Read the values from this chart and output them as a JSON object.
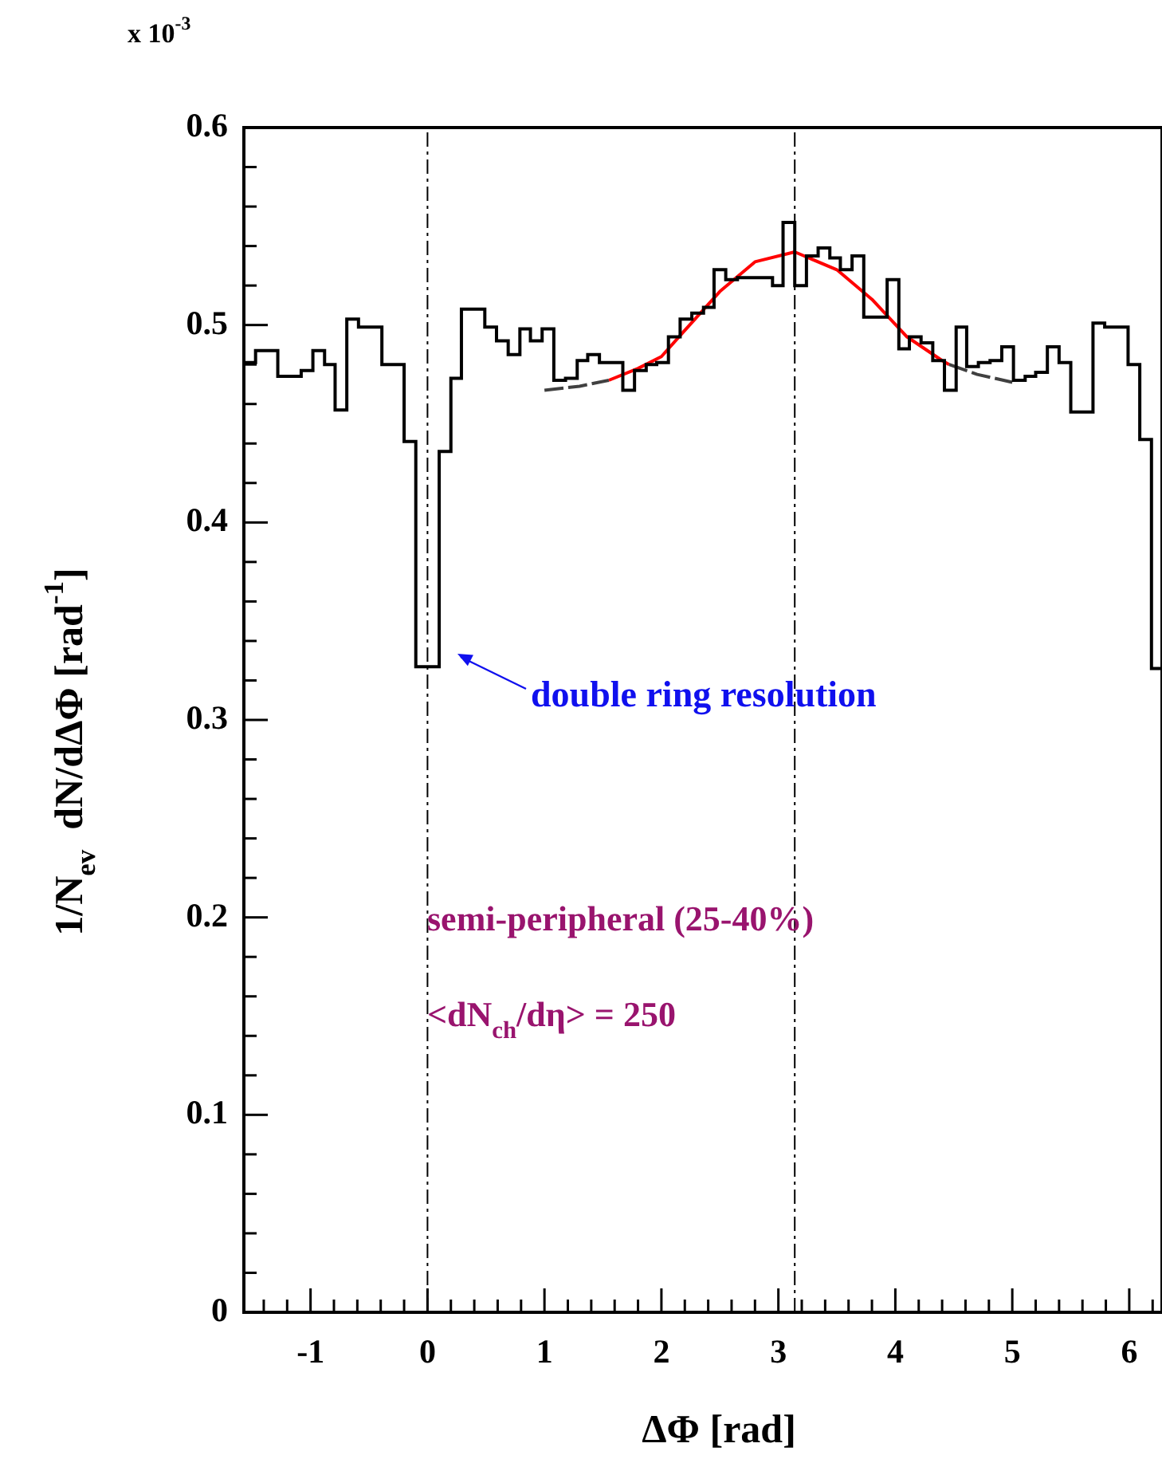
{
  "chart_data": {
    "type": "histogram",
    "xlabel": "ΔΦ [rad]",
    "ylabel": "1/N$_{ev}$  dN/dΔΦ [rad$^{-1}$]",
    "marker": "none",
    "xlim": [
      -1.57,
      6.28
    ],
    "ylim": [
      0,
      0.6
    ],
    "xticks": [
      {
        "value": -1.4,
        "label": null
      },
      {
        "value": -1.2,
        "label": null
      },
      -1,
      {
        "value": -0.8,
        "label": null
      },
      {
        "value": -0.6,
        "label": null
      },
      {
        "value": -0.4,
        "label": null
      },
      {
        "value": -0.2,
        "label": null
      },
      0,
      {
        "value": 0.2,
        "label": null
      },
      {
        "value": 0.4,
        "label": null
      },
      {
        "value": 0.6,
        "label": null
      },
      {
        "value": 0.8,
        "label": null
      },
      1,
      {
        "value": 1.2,
        "label": null
      },
      {
        "value": 1.4,
        "label": null
      },
      {
        "value": 1.6,
        "label": null
      },
      {
        "value": 1.8,
        "label": null
      },
      2,
      {
        "value": 2.2,
        "label": null
      },
      {
        "value": 2.4,
        "label": null
      },
      {
        "value": 2.6,
        "label": null
      },
      {
        "value": 2.8,
        "label": null
      },
      3,
      {
        "value": 3.2,
        "label": null
      },
      {
        "value": 3.4,
        "label": null
      },
      {
        "value": 3.6,
        "label": null
      },
      {
        "value": 3.8,
        "label": null
      },
      4,
      {
        "value": 4.2,
        "label": null
      },
      {
        "value": 4.4,
        "label": null
      },
      {
        "value": 4.6,
        "label": null
      },
      {
        "value": 4.8,
        "label": null
      },
      5,
      {
        "value": 5.2,
        "label": null
      },
      {
        "value": 5.4,
        "label": null
      },
      {
        "value": 5.6,
        "label": null
      },
      {
        "value": 5.8,
        "label": null
      },
      6,
      {
        "value": 6.2,
        "label": null
      }
    ],
    "yticks": [
      0,
      {
        "value": 0.02,
        "label": null
      },
      {
        "value": 0.04,
        "label": null
      },
      {
        "value": 0.06,
        "label": null
      },
      {
        "value": 0.08,
        "label": null
      },
      0.1,
      {
        "value": 0.12,
        "label": null
      },
      {
        "value": 0.14,
        "label": null
      },
      {
        "value": 0.16,
        "label": null
      },
      {
        "value": 0.18,
        "label": null
      },
      0.2,
      {
        "value": 0.22,
        "label": null
      },
      {
        "value": 0.24,
        "label": null
      },
      {
        "value": 0.26,
        "label": null
      },
      {
        "value": 0.28,
        "label": null
      },
      0.3,
      {
        "value": 0.32,
        "label": null
      },
      {
        "value": 0.34,
        "label": null
      },
      {
        "value": 0.36,
        "label": null
      },
      {
        "value": 0.38,
        "label": null
      },
      0.4,
      {
        "value": 0.42,
        "label": null
      },
      {
        "value": 0.44,
        "label": null
      },
      {
        "value": 0.46,
        "label": null
      },
      {
        "value": 0.48,
        "label": null
      },
      0.5,
      {
        "value": 0.52,
        "label": null
      },
      {
        "value": 0.54,
        "label": null
      },
      {
        "value": 0.56,
        "label": null
      },
      {
        "value": 0.58,
        "label": null
      },
      0.6
    ],
    "series": [
      {
        "color": "#000000",
        "bins": [
          -1.57,
          -1.47,
          -1.37,
          -1.28,
          -1.18,
          -1.08,
          -0.98,
          -0.88,
          -0.79,
          -0.69,
          -0.59,
          -0.49,
          -0.39,
          -0.29,
          -0.2,
          -0.1,
          0,
          0.1,
          0.2,
          0.29,
          0.39,
          0.49,
          0.59,
          0.69,
          0.79,
          0.88,
          0.98,
          1.08,
          1.18,
          1.28,
          1.37,
          1.47,
          1.57,
          1.67,
          1.77,
          1.87,
          1.96,
          2.06,
          2.16,
          2.26,
          2.36,
          2.45,
          2.55,
          2.65,
          2.75,
          2.85,
          2.95,
          3.04,
          3.14,
          3.24,
          3.34,
          3.44,
          3.53,
          3.63,
          3.73,
          3.83,
          3.93,
          4.03,
          4.12,
          4.22,
          4.32,
          4.42,
          4.52,
          4.61,
          4.71,
          4.81,
          4.91,
          5.01,
          5.11,
          5.2,
          5.3,
          5.4,
          5.5,
          5.6,
          5.69,
          5.79,
          5.89,
          5.99,
          6.09,
          6.19,
          6.28
        ],
        "values": [
          0.481,
          0.487,
          0.487,
          0.474,
          0.474,
          0.477,
          0.487,
          0.48,
          0.457,
          0.503,
          0.499,
          0.499,
          0.48,
          0.48,
          0.441,
          0.327,
          0.327,
          0.436,
          0.473,
          0.508,
          0.508,
          0.499,
          0.492,
          0.485,
          0.498,
          0.492,
          0.498,
          0.472,
          0.473,
          0.482,
          0.485,
          0.481,
          0.481,
          0.467,
          0.477,
          0.48,
          0.481,
          0.494,
          0.503,
          0.506,
          0.509,
          0.528,
          0.523,
          0.524,
          0.524,
          0.524,
          0.52,
          0.552,
          0.52,
          0.535,
          0.539,
          0.534,
          0.528,
          0.535,
          0.504,
          0.504,
          0.523,
          0.488,
          0.494,
          0.491,
          0.482,
          0.467,
          0.499,
          0.479,
          0.481,
          0.482,
          0.489,
          0.472,
          0.474,
          0.476,
          0.489,
          0.481,
          0.456,
          0.456,
          0.501,
          0.499,
          0.499,
          0.48,
          0.442,
          0.326
        ]
      },
      {
        "type": "line",
        "color": "#404040",
        "line_style": "dashed",
        "x": [
          1.0,
          1.3,
          1.55
        ],
        "values": [
          0.467,
          0.469,
          0.472
        ]
      },
      {
        "type": "line",
        "color": "#404040",
        "line_style": "dashed",
        "x": [
          4.46,
          4.7,
          5.0
        ],
        "values": [
          0.48,
          0.475,
          0.471
        ]
      },
      {
        "type": "line",
        "color": "#ff0000",
        "line_style": "solid",
        "x": [
          1.55,
          1.8,
          2.0,
          2.18,
          2.5,
          2.8,
          3.14,
          3.5,
          3.8,
          4.1,
          4.4,
          4.46
        ],
        "values": [
          0.472,
          0.478,
          0.484,
          0.496,
          0.517,
          0.532,
          0.537,
          0.528,
          0.513,
          0.494,
          0.482,
          0.48
        ]
      }
    ],
    "ref_lines": [
      {
        "axis": "x",
        "value": 0,
        "line_style": "dashed",
        "color": "#000000"
      },
      {
        "axis": "x",
        "value": 3.14,
        "line_style": "dashed",
        "color": "#000000"
      }
    ],
    "annotations": [
      "x 10$^{-3}$",
      "double ring resolution",
      "semi-peripheral (25-40%)",
      "<dN$_{ch}$/dη> = 250"
    ]
  }
}
